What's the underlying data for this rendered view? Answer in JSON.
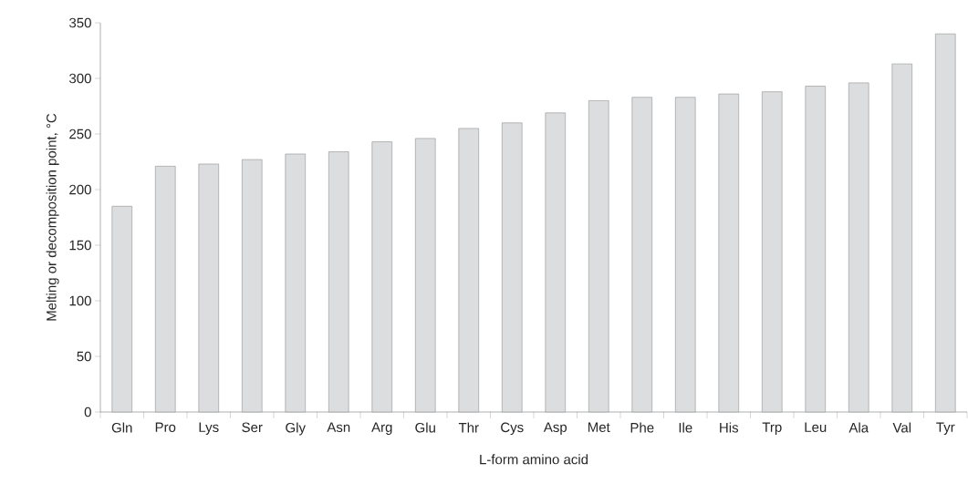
{
  "chart_data": {
    "type": "bar",
    "xlabel": "L-form amino acid",
    "ylabel": "Melting or decomposition point, °C",
    "categories": [
      "Gln",
      "Pro",
      "Lys",
      "Ser",
      "Gly",
      "Asn",
      "Arg",
      "Glu",
      "Thr",
      "Cys",
      "Asp",
      "Met",
      "Phe",
      "Ile",
      "His",
      "Trp",
      "Leu",
      "Ala",
      "Val",
      "Tyr"
    ],
    "values": [
      185,
      221,
      223,
      227,
      232,
      234,
      243,
      246,
      255,
      260,
      269,
      280,
      283,
      283,
      286,
      288,
      293,
      296,
      313,
      340
    ],
    "color": "#dcdddf",
    "ylim": [
      0,
      350
    ],
    "yticks": [
      0,
      50,
      100,
      150,
      200,
      250,
      300,
      350
    ]
  }
}
